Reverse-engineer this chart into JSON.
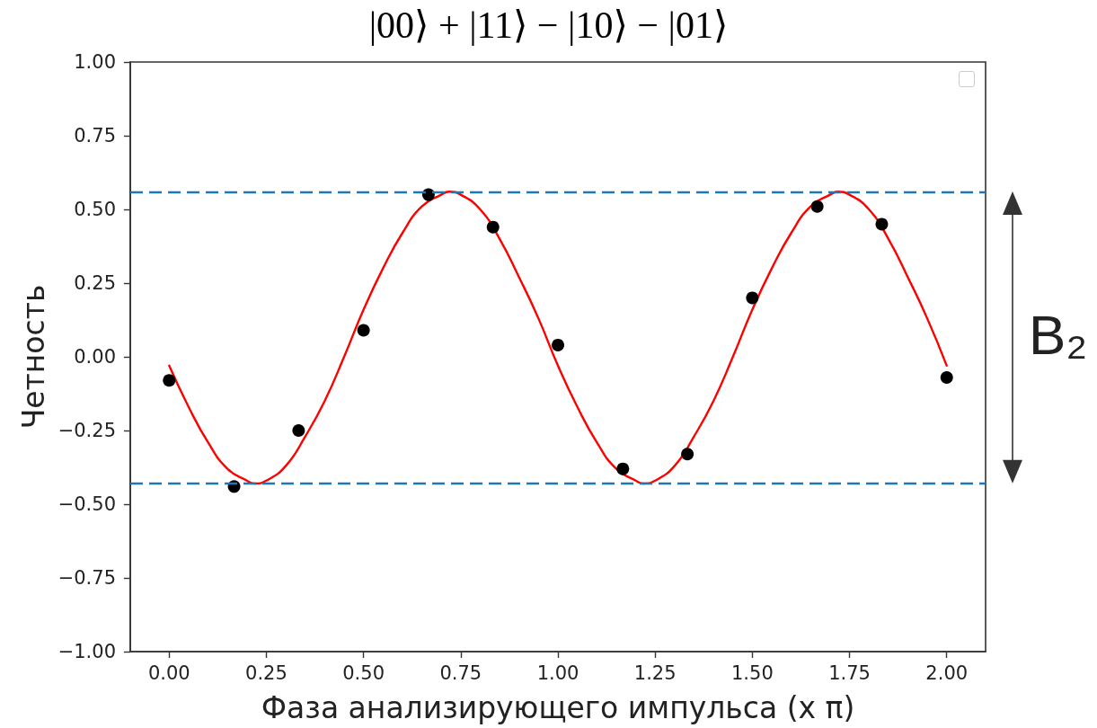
{
  "chart_data": {
    "type": "scatter",
    "title": "|00⟩ + |11⟩ − |10⟩ − |01⟩",
    "xlabel": "Фаза анализирующего импульса (x π)",
    "ylabel": "Четность",
    "annotations": [
      "B₂"
    ],
    "xlim": [
      -0.1,
      2.1
    ],
    "xticks": [
      {
        "value": 0,
        "label": "0.00"
      },
      {
        "value": 0.25,
        "label": "0.25"
      },
      {
        "value": 0.5,
        "label": "0.50"
      },
      {
        "value": 0.75,
        "label": "0.75"
      },
      {
        "value": 1,
        "label": "1.00"
      },
      {
        "value": 1.25,
        "label": "1.25"
      },
      {
        "value": 1.5,
        "label": "1.50"
      },
      {
        "value": 1.75,
        "label": "1.75"
      },
      {
        "value": 2,
        "label": "2.00"
      }
    ],
    "ylim": [
      -1,
      1
    ],
    "yticks": [
      {
        "value": -1,
        "label": "−1.00"
      },
      {
        "value": -0.75,
        "label": "−0.75"
      },
      {
        "value": -0.5,
        "label": "−0.50"
      },
      {
        "value": -0.25,
        "label": "−0.25"
      },
      {
        "value": 0,
        "label": "0.00"
      },
      {
        "value": 0.25,
        "label": "0.25"
      },
      {
        "value": 0.5,
        "label": "0.50"
      },
      {
        "value": 0.75,
        "label": "0.75"
      },
      {
        "value": 1,
        "label": "1.00"
      }
    ],
    "series": [
      {
        "color": "#000000",
        "marker": "circle",
        "x": [
          0,
          0.167,
          0.333,
          0.5,
          0.667,
          0.833,
          1,
          1.167,
          1.333,
          1.5,
          1.667,
          1.833,
          2
        ],
        "values": [
          -0.08,
          -0.44,
          -0.25,
          0.09,
          0.55,
          0.44,
          0.04,
          -0.38,
          -0.33,
          0.2,
          0.51,
          0.45,
          -0.07
        ]
      },
      {
        "type": "line",
        "color": "#ff0000",
        "x": [
          0,
          0.05,
          0.1,
          0.15,
          0.2,
          0.22,
          0.25,
          0.3,
          0.35,
          0.4,
          0.45,
          0.5,
          0.55,
          0.6,
          0.65,
          0.7,
          0.72,
          0.75,
          0.8,
          0.85,
          0.9,
          0.95,
          1,
          1.05,
          1.1,
          1.15,
          1.2,
          1.22,
          1.25,
          1.3,
          1.35,
          1.4,
          1.45,
          1.5,
          1.55,
          1.6,
          1.65,
          1.7,
          1.72,
          1.75,
          1.8,
          1.85,
          1.9,
          1.95,
          2
        ],
        "values": [
          -0.03,
          -0.17,
          -0.29,
          -0.38,
          -0.42,
          -0.43,
          -0.42,
          -0.37,
          -0.27,
          -0.15,
          0,
          0.16,
          0.3,
          0.42,
          0.51,
          0.55,
          0.56,
          0.55,
          0.5,
          0.4,
          0.27,
          0.13,
          -0.03,
          -0.17,
          -0.29,
          -0.38,
          -0.42,
          -0.43,
          -0.42,
          -0.37,
          -0.27,
          -0.15,
          0,
          0.16,
          0.3,
          0.42,
          0.51,
          0.55,
          0.56,
          0.55,
          0.5,
          0.4,
          0.27,
          0.13,
          -0.03
        ]
      }
    ],
    "ref_lines": [
      {
        "axis": "y",
        "value": 0.56,
        "color": "#1f77b4",
        "line_style": "dashed"
      },
      {
        "axis": "y",
        "value": -0.43,
        "color": "#1f77b4",
        "line_style": "dashed"
      }
    ]
  }
}
